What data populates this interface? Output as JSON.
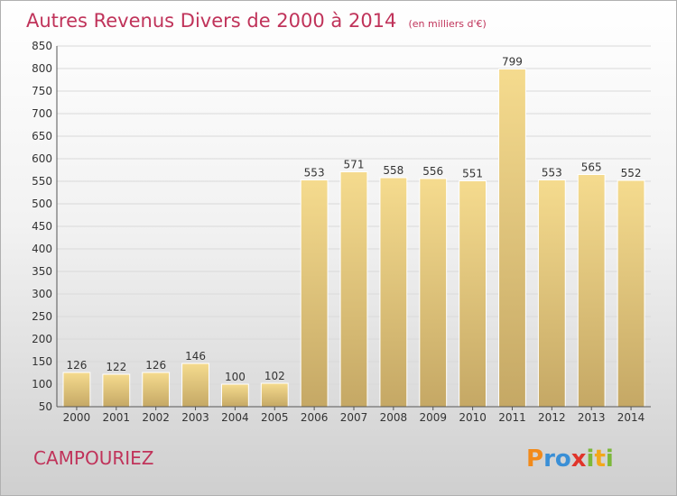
{
  "chart_data": {
    "type": "bar",
    "title": "Autres Revenus Divers de 2000 à 2014",
    "subtitle": "(en milliers d'€)",
    "categories": [
      "2000",
      "2001",
      "2002",
      "2003",
      "2004",
      "2005",
      "2006",
      "2007",
      "2008",
      "2009",
      "2010",
      "2011",
      "2012",
      "2013",
      "2014"
    ],
    "values": [
      126,
      122,
      126,
      146,
      100,
      102,
      553,
      571,
      558,
      556,
      551,
      799,
      553,
      565,
      552
    ],
    "ylim": [
      50,
      850
    ],
    "yticks": [
      50,
      100,
      150,
      200,
      250,
      300,
      350,
      400,
      450,
      500,
      550,
      600,
      650,
      700,
      750,
      800,
      850
    ],
    "grid": true,
    "bar_color": "#e8c874"
  },
  "footer": {
    "place_name": "CAMPOURIEZ",
    "logo": "Proxiti"
  }
}
